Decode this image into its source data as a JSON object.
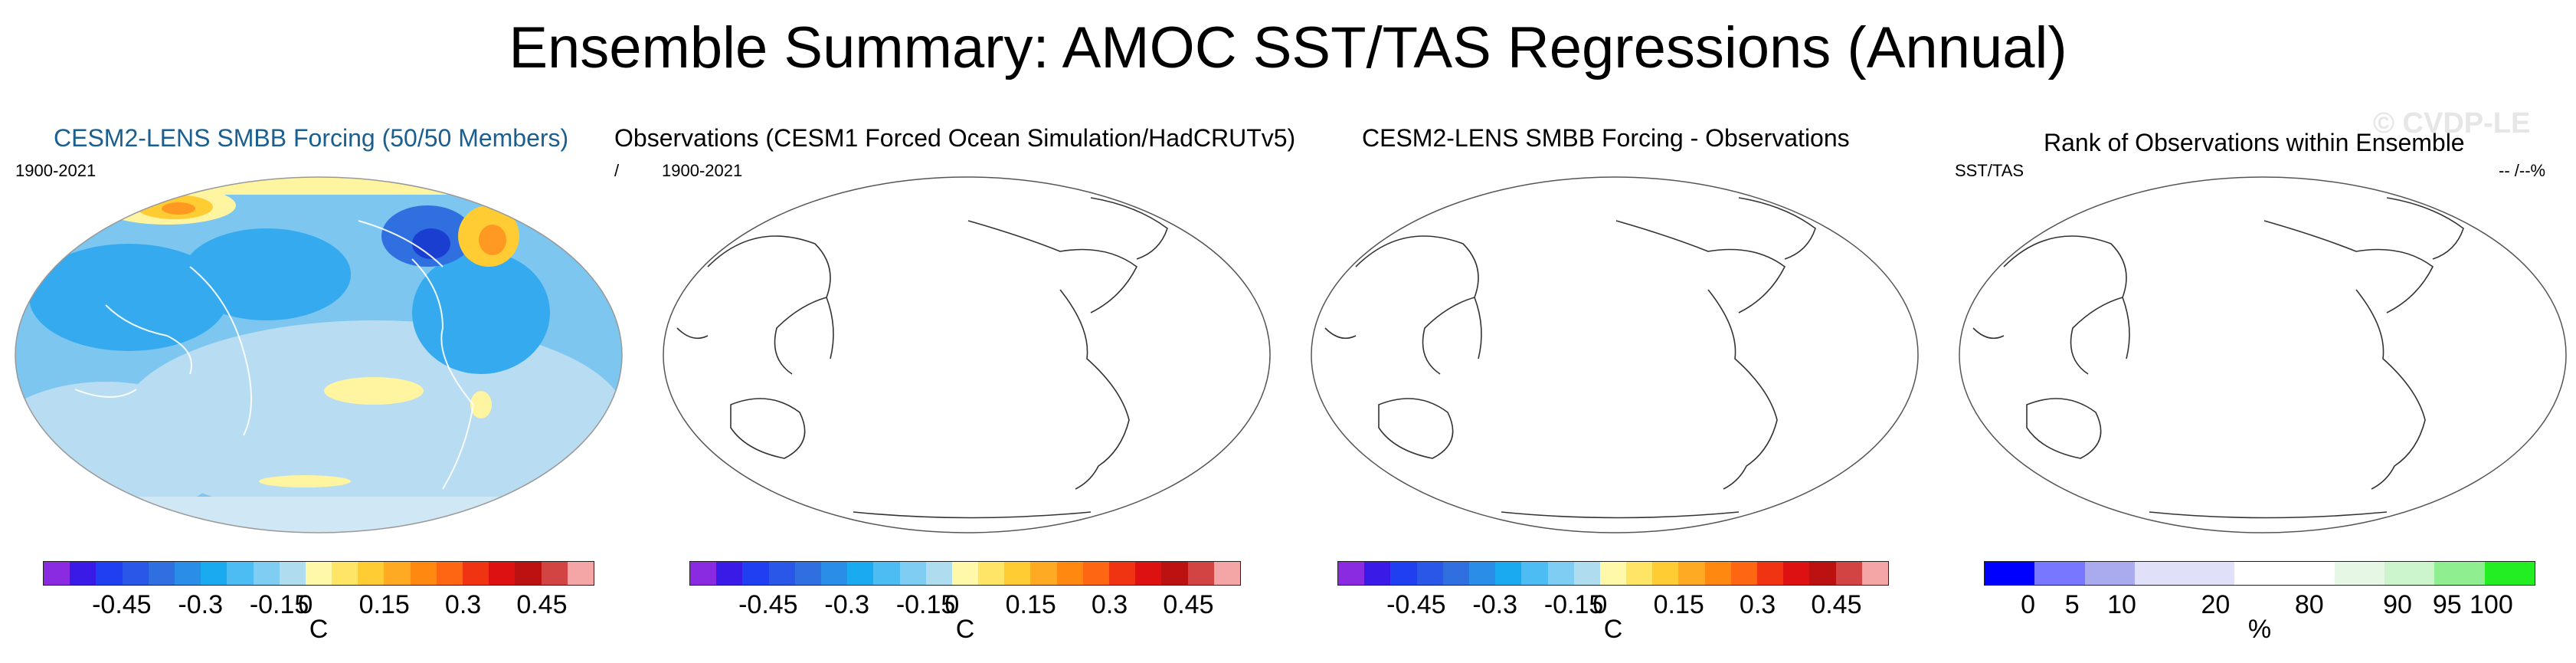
{
  "title": "Ensemble Summary: AMOC SST/TAS Regressions (Annual)",
  "watermark": "© CVDP-LE",
  "panels": [
    {
      "title": "CESM2-LENS SMBB Forcing (50/50 Members)",
      "title_color": "#1a5f8f",
      "left_label": "1900-2021",
      "mid_label": "",
      "right_label": ""
    },
    {
      "title": "Observations (CESM1 Forced Ocean Simulation/HadCRUTv5)",
      "title_color": "#000000",
      "left_label": "/",
      "mid_label": "1900-2021",
      "right_label": ""
    },
    {
      "title": "CESM2-LENS SMBB Forcing - Observations",
      "title_color": "#000000",
      "left_label": "",
      "mid_label": "",
      "right_label": ""
    },
    {
      "title": "Rank of Observations within Ensemble",
      "title_color": "#000000",
      "left_label": "SST/TAS",
      "mid_label": "",
      "right_label": "-- /--%"
    }
  ],
  "colorbar_diverging": {
    "colors": [
      "#8a2be2",
      "#3a1ae6",
      "#1f3ff0",
      "#2a57e8",
      "#2f6fe0",
      "#2a8ee8",
      "#1aaaf0",
      "#4dbcf2",
      "#7fcdf2",
      "#b0dcf0",
      "#fff8a8",
      "#ffe566",
      "#ffcc33",
      "#ffaa22",
      "#ff8811",
      "#ff6611",
      "#f03311",
      "#dd1111",
      "#bb1111",
      "#d24444",
      "#f4a6a6"
    ],
    "ticks": [
      "-0.45",
      "-0.3",
      "-0.15",
      "0",
      "0.15",
      "0.3",
      "0.45"
    ],
    "unit": "C"
  },
  "colorbar_rank": {
    "colors": [
      "#0000ff",
      "#7777ff",
      "#aaaaee",
      "#e0e0f8",
      "#e0e0f8",
      "#ffffff",
      "#ffffff",
      "#e6f7e6",
      "#ccf5cc",
      "#8fee8f",
      "#22ee22"
    ],
    "ticks": [
      "0",
      "5",
      "10",
      "20",
      "80",
      "90",
      "95",
      "100"
    ],
    "unit": "%"
  },
  "map_colors": {
    "ocean_base": "#a8d4ee",
    "light_blue": "#c8e4f4",
    "mid_blue": "#36aaee",
    "deep_blue": "#2f6fe0",
    "yellow": "#fff5a0",
    "orange": "#ffaa22"
  }
}
